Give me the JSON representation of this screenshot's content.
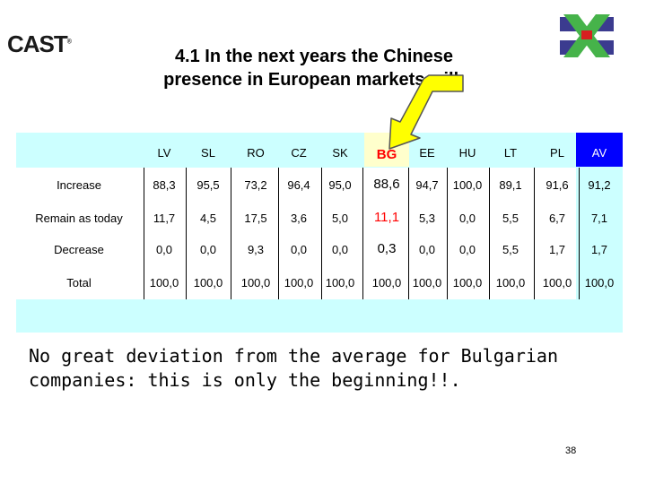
{
  "logo_text": "CAST",
  "logo_mark": "®",
  "title_line1": "4.1 In the next years the Chinese",
  "title_line2": "presence in European markets will:",
  "columns": [
    "LV",
    "SL",
    "RO",
    "CZ",
    "SK",
    "BG",
    "EE",
    "HU",
    "LT",
    "PL",
    "AV"
  ],
  "rows": [
    {
      "label": "Increase",
      "values": [
        "88,3",
        "95,5",
        "73,2",
        "96,4",
        "95,0",
        "88,6",
        "94,7",
        "100,0",
        "89,1",
        "91,6",
        "91,2"
      ]
    },
    {
      "label": "Remain as today",
      "values": [
        "11,7",
        "4,5",
        "17,5",
        "3,6",
        "5,0",
        "11,1",
        "5,3",
        "0,0",
        "5,5",
        "6,7",
        "7,1"
      ]
    },
    {
      "label": "Decrease",
      "values": [
        "0,0",
        "0,0",
        "9,3",
        "0,0",
        "0,0",
        "0,3",
        "0,0",
        "0,0",
        "5,5",
        "1,7",
        "1,7"
      ]
    },
    {
      "label": "Total",
      "values": [
        "100,0",
        "100,0",
        "100,0",
        "100,0",
        "100,0",
        "100,0",
        "100,0",
        "100,0",
        "100,0",
        "100,0",
        "100,0"
      ]
    }
  ],
  "highlight_column": "BG",
  "note_line1": "No great deviation from the average for Bulgarian",
  "note_line2": "companies: this is only the beginning!!.",
  "page_number": "38",
  "colors": {
    "table_band": "#ccffff",
    "av_header": "#0000ff",
    "bg_highlight": "#ffffcc",
    "bg_text": "#ff0000",
    "arrow": "#ffff00"
  }
}
